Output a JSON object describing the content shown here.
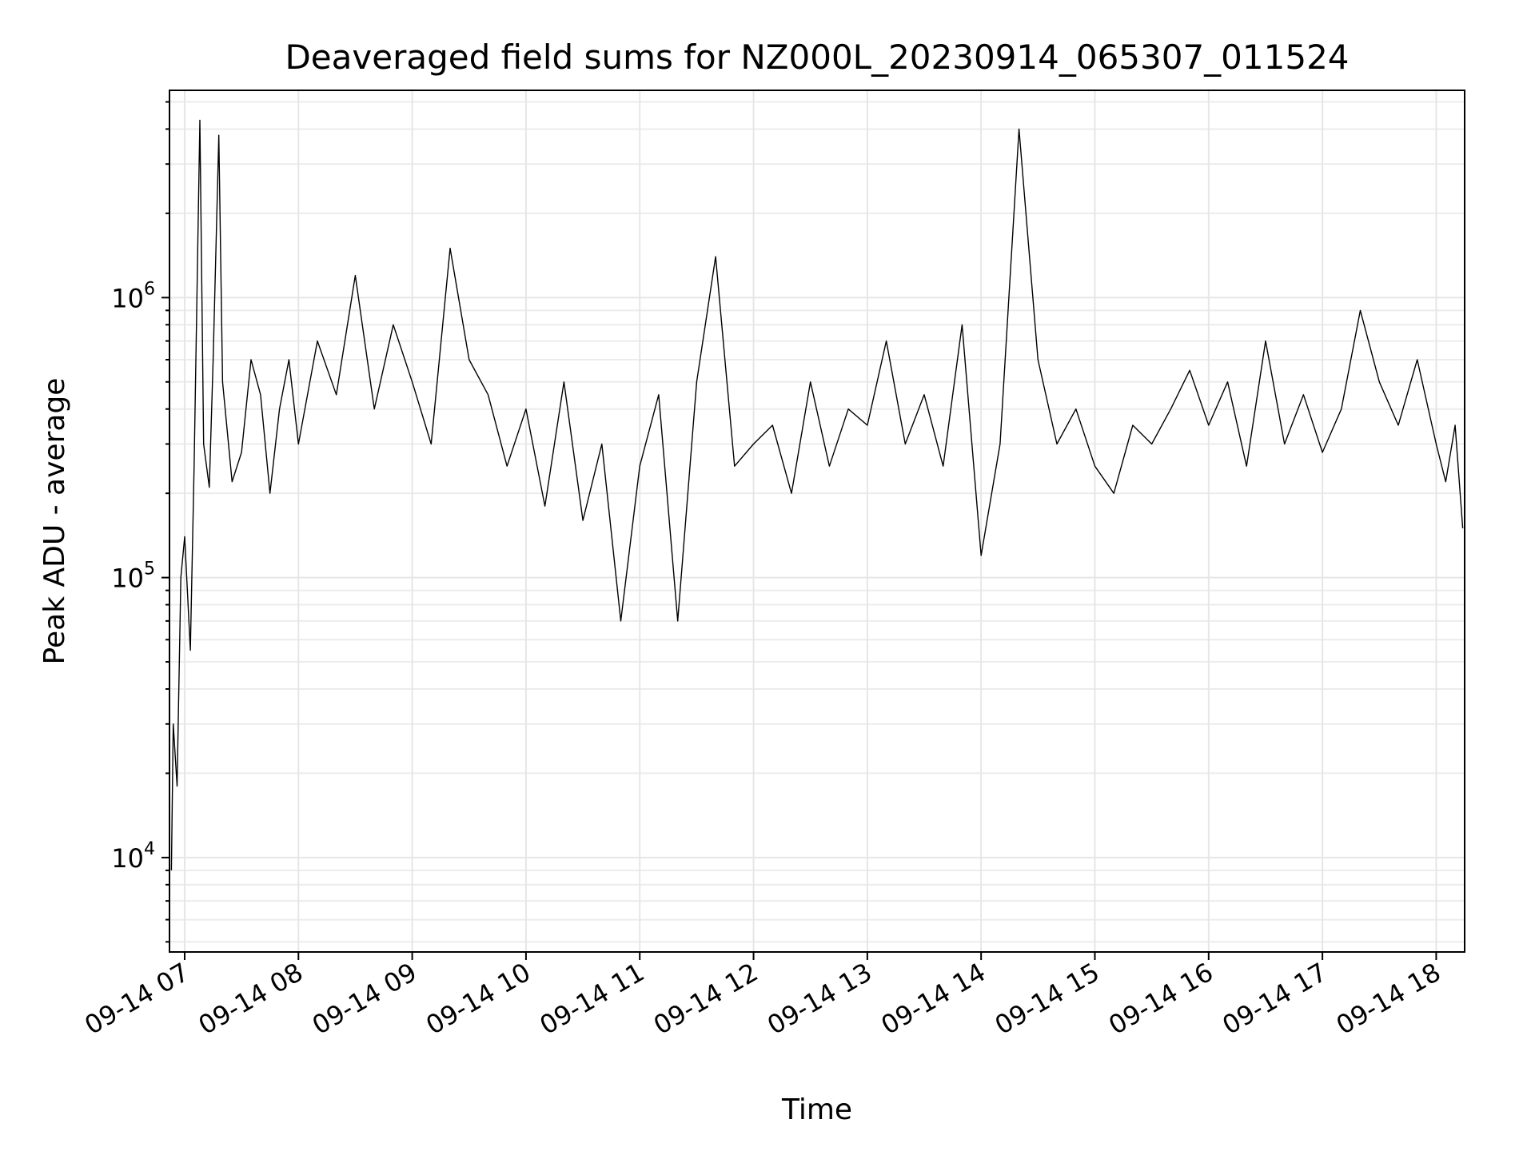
{
  "chart_data": {
    "type": "line",
    "title": "Deaveraged field sums for NZ000L_20230914_065307_011524",
    "xlabel": "Time",
    "ylabel": "Peak ADU - average",
    "yscale": "log",
    "ylim": [
      4600,
      5500000
    ],
    "xlim": [
      "2023-09-14 06:52",
      "2023-09-14 18:15"
    ],
    "x_ticks": [
      "09-14 07",
      "09-14 08",
      "09-14 09",
      "09-14 10",
      "09-14 11",
      "09-14 12",
      "09-14 13",
      "09-14 14",
      "09-14 15",
      "09-14 16",
      "09-14 17",
      "09-14 18"
    ],
    "y_ticks": [
      {
        "value": 10000,
        "base": "10",
        "exp": "4"
      },
      {
        "value": 100000,
        "base": "10",
        "exp": "5"
      },
      {
        "value": 1000000,
        "base": "10",
        "exp": "6"
      }
    ],
    "grid": true,
    "color": "#000000",
    "series": [
      {
        "x": [
          "2023-09-14 06:53",
          "2023-09-14 06:54",
          "2023-09-14 06:56",
          "2023-09-14 06:58",
          "2023-09-14 07:00",
          "2023-09-14 07:03",
          "2023-09-14 07:05",
          "2023-09-14 07:08",
          "2023-09-14 07:10",
          "2023-09-14 07:13",
          "2023-09-14 07:15",
          "2023-09-14 07:18",
          "2023-09-14 07:20",
          "2023-09-14 07:25",
          "2023-09-14 07:30",
          "2023-09-14 07:35",
          "2023-09-14 07:40",
          "2023-09-14 07:45",
          "2023-09-14 07:50",
          "2023-09-14 07:55",
          "2023-09-14 08:00",
          "2023-09-14 08:10",
          "2023-09-14 08:20",
          "2023-09-14 08:30",
          "2023-09-14 08:40",
          "2023-09-14 08:50",
          "2023-09-14 09:00",
          "2023-09-14 09:10",
          "2023-09-14 09:20",
          "2023-09-14 09:30",
          "2023-09-14 09:40",
          "2023-09-14 09:50",
          "2023-09-14 10:00",
          "2023-09-14 10:10",
          "2023-09-14 10:20",
          "2023-09-14 10:30",
          "2023-09-14 10:40",
          "2023-09-14 10:50",
          "2023-09-14 11:00",
          "2023-09-14 11:10",
          "2023-09-14 11:20",
          "2023-09-14 11:30",
          "2023-09-14 11:40",
          "2023-09-14 11:50",
          "2023-09-14 12:00",
          "2023-09-14 12:10",
          "2023-09-14 12:20",
          "2023-09-14 12:30",
          "2023-09-14 12:40",
          "2023-09-14 12:50",
          "2023-09-14 13:00",
          "2023-09-14 13:10",
          "2023-09-14 13:20",
          "2023-09-14 13:30",
          "2023-09-14 13:40",
          "2023-09-14 13:50",
          "2023-09-14 14:00",
          "2023-09-14 14:10",
          "2023-09-14 14:20",
          "2023-09-14 14:30",
          "2023-09-14 14:40",
          "2023-09-14 14:50",
          "2023-09-14 15:00",
          "2023-09-14 15:10",
          "2023-09-14 15:20",
          "2023-09-14 15:30",
          "2023-09-14 15:40",
          "2023-09-14 15:50",
          "2023-09-14 16:00",
          "2023-09-14 16:10",
          "2023-09-14 16:20",
          "2023-09-14 16:30",
          "2023-09-14 16:40",
          "2023-09-14 16:50",
          "2023-09-14 17:00",
          "2023-09-14 17:10",
          "2023-09-14 17:20",
          "2023-09-14 17:30",
          "2023-09-14 17:40",
          "2023-09-14 17:50",
          "2023-09-14 18:00",
          "2023-09-14 18:05",
          "2023-09-14 18:10",
          "2023-09-14 18:14"
        ],
        "y": [
          9000,
          30000,
          18000,
          100000,
          140000,
          55000,
          250000,
          4300000,
          300000,
          210000,
          600000,
          3800000,
          500000,
          220000,
          280000,
          600000,
          450000,
          200000,
          400000,
          600000,
          300000,
          700000,
          450000,
          1200000,
          400000,
          800000,
          500000,
          300000,
          1500000,
          600000,
          450000,
          250000,
          400000,
          180000,
          500000,
          160000,
          300000,
          70000,
          250000,
          450000,
          70000,
          500000,
          1400000,
          250000,
          300000,
          350000,
          200000,
          500000,
          250000,
          400000,
          350000,
          700000,
          300000,
          450000,
          250000,
          800000,
          120000,
          300000,
          4000000,
          600000,
          300000,
          400000,
          250000,
          200000,
          350000,
          300000,
          400000,
          550000,
          350000,
          500000,
          250000,
          700000,
          300000,
          450000,
          280000,
          400000,
          900000,
          500000,
          350000,
          600000,
          300000,
          220000,
          350000,
          150000
        ]
      }
    ]
  }
}
